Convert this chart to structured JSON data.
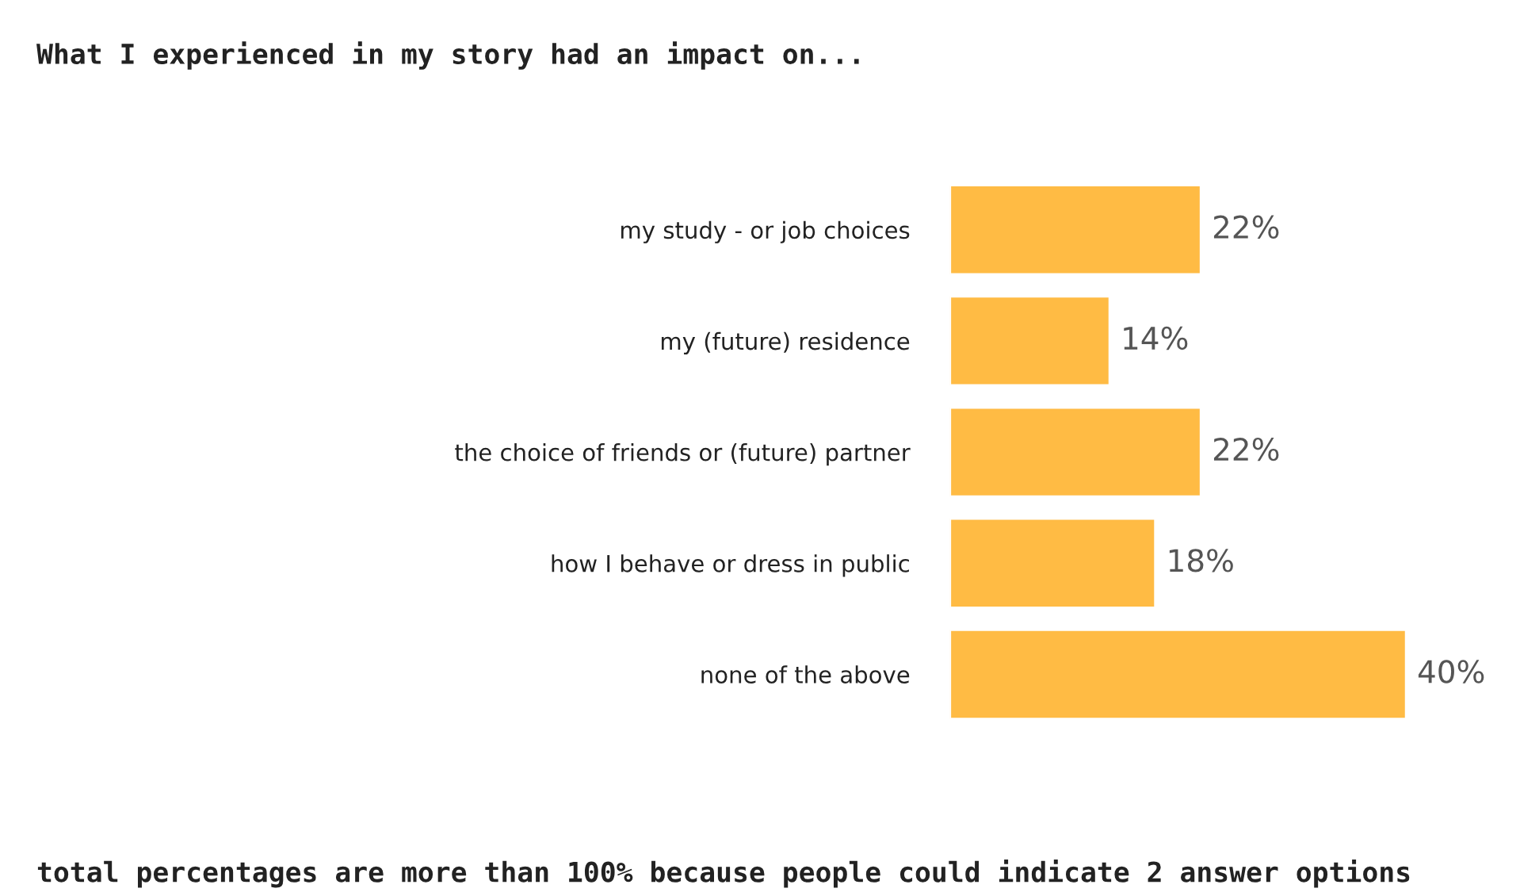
{
  "chart_data": {
    "type": "bar",
    "orientation": "horizontal",
    "title": "What I experienced in my story had an impact on...",
    "categories": [
      "my study - or job choices",
      "my (future) residence",
      "the choice of friends or (future) partner",
      "how I behave or dress in public",
      "none of the above"
    ],
    "values": [
      22,
      14,
      22,
      18,
      40
    ],
    "value_labels": [
      "22%",
      "14%",
      "22%",
      "18%",
      "40%"
    ],
    "color": "#ffbb44",
    "annotations": [
      "total percentages are more than 100% because people could indicate 2 answer options"
    ],
    "grid": false,
    "legend": false
  }
}
